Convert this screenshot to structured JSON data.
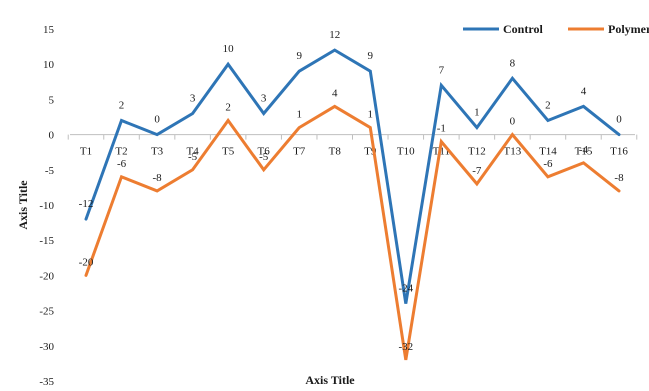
{
  "chart_data": {
    "type": "line",
    "categories": [
      "T1",
      "T2",
      "T3",
      "T4",
      "T5",
      "T6",
      "T7",
      "T8",
      "T9",
      "T10",
      "T11",
      "T12",
      "T13",
      "T14",
      "T15",
      "T16"
    ],
    "series": [
      {
        "name": "Control",
        "color": "#2e75b6",
        "values": [
          -12,
          2,
          0,
          3,
          10,
          3,
          9,
          12,
          9,
          -24,
          7,
          1,
          8,
          2,
          4,
          0
        ]
      },
      {
        "name": "Polymer",
        "color": "#ed7d31",
        "values": [
          -20,
          -6,
          -8,
          -5,
          2,
          -5,
          1,
          4,
          1,
          -32,
          -1,
          -7,
          0,
          -6,
          -4,
          -8
        ]
      }
    ],
    "xlabel": "Axis Title",
    "ylabel": "Axis Title",
    "ylim": [
      -35,
      15
    ],
    "yticks": [
      15,
      10,
      5,
      0,
      -5,
      -10,
      -15,
      -20,
      -25,
      -30,
      -35
    ],
    "grid": false,
    "legend_position": "top-right",
    "data_labels": true
  }
}
